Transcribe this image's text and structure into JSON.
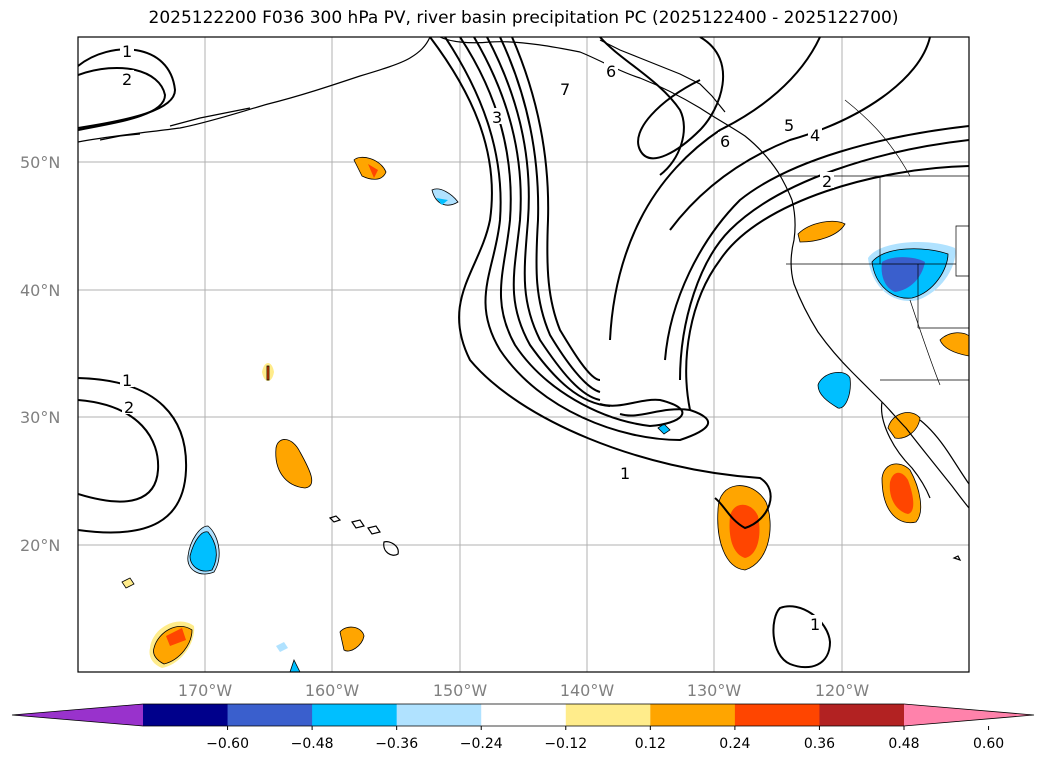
{
  "title": "2025122200 F036 300 hPa PV, river basin precipitation PC (2025122400 - 2025122700)",
  "map": {
    "lon_labels": [
      "170°W",
      "160°W",
      "150°W",
      "140°W",
      "130°W",
      "120°W"
    ],
    "lat_labels": [
      "50°N",
      "40°N",
      "30°N",
      "20°N"
    ],
    "contour_labels": [
      "1",
      "2",
      "6",
      "7",
      "3",
      "5",
      "4",
      "6",
      "2",
      "1",
      "2",
      "1",
      "1"
    ]
  },
  "colorbar": {
    "tick_labels": [
      "−0.60",
      "−0.48",
      "−0.36",
      "−0.24",
      "−0.12",
      "0.12",
      "0.24",
      "0.36",
      "0.48",
      "0.60"
    ],
    "colors": [
      "#9932cc",
      "#00008b",
      "#3a5fcd",
      "#00bfff",
      "#b0e2ff",
      "#ffffff",
      "#ffec8b",
      "#ffa500",
      "#ff4500",
      "#b22222",
      "#ff82ab"
    ]
  }
}
